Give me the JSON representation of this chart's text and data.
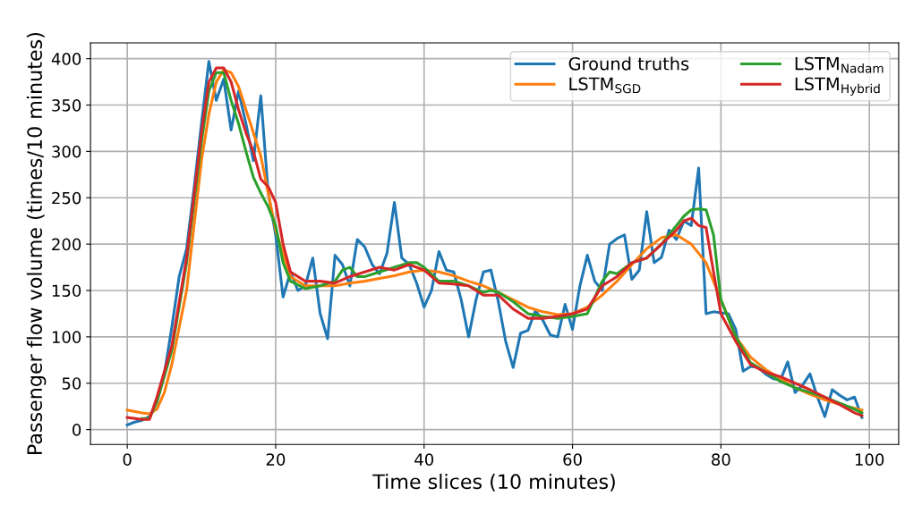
{
  "chart_data": {
    "type": "line",
    "xlabel": "Time slices (10 minutes)",
    "ylabel": "Passenger flow volume (times/10 minutes)",
    "xlim": [
      -4.95,
      103.95
    ],
    "ylim": [
      -16,
      417
    ],
    "xticks": [
      0,
      20,
      40,
      60,
      80,
      100
    ],
    "yticks": [
      0,
      50,
      100,
      150,
      200,
      250,
      300,
      350,
      400
    ],
    "grid": true,
    "legend": "top right",
    "line_style": "solid",
    "marker": "none",
    "series": [
      {
        "name": "Ground truths",
        "color": "#1f77b4",
        "x": [
          0,
          1,
          2,
          3,
          4,
          5,
          6,
          7,
          8,
          9,
          10,
          11,
          12,
          13,
          14,
          15,
          16,
          17,
          18,
          19,
          20,
          21,
          22,
          23,
          24,
          25,
          26,
          27,
          28,
          29,
          30,
          31,
          32,
          33,
          34,
          35,
          36,
          37,
          38,
          39,
          40,
          41,
          42,
          43,
          44,
          45,
          46,
          47,
          48,
          49,
          50,
          51,
          52,
          53,
          54,
          55,
          56,
          57,
          58,
          59,
          60,
          61,
          62,
          63,
          64,
          65,
          66,
          67,
          68,
          69,
          70,
          71,
          72,
          73,
          74,
          75,
          76,
          77,
          78,
          79,
          80,
          81,
          82,
          83,
          84,
          85,
          86,
          87,
          88,
          89,
          90,
          91,
          92,
          93,
          94,
          95,
          96,
          97,
          98,
          99
        ],
        "values": [
          5,
          8,
          10,
          14,
          30,
          60,
          110,
          165,
          195,
          260,
          330,
          397,
          355,
          378,
          323,
          365,
          330,
          290,
          360,
          255,
          210,
          143,
          170,
          150,
          155,
          185,
          125,
          98,
          188,
          178,
          155,
          205,
          197,
          178,
          168,
          190,
          245,
          185,
          178,
          158,
          132,
          150,
          192,
          172,
          170,
          140,
          100,
          140,
          170,
          172,
          138,
          95,
          67,
          104,
          107,
          128,
          118,
          102,
          100,
          135,
          108,
          155,
          188,
          160,
          150,
          200,
          206,
          210,
          162,
          172,
          235,
          180,
          186,
          215,
          205,
          225,
          220,
          282,
          125,
          127,
          126,
          125,
          108,
          63,
          68,
          67,
          60,
          55,
          53,
          73,
          40,
          48,
          60,
          35,
          14,
          43,
          37,
          32,
          35,
          13
        ]
      },
      {
        "name": "LSTM$_{SGD}$",
        "color": "#ff7f0e",
        "x": [
          0,
          2,
          3,
          4,
          5,
          6,
          8,
          10,
          11,
          12,
          13,
          14,
          15,
          16,
          18,
          20,
          22,
          24,
          26,
          28,
          30,
          32,
          34,
          36,
          38,
          40,
          42,
          44,
          46,
          48,
          50,
          52,
          54,
          56,
          58,
          60,
          62,
          64,
          66,
          68,
          70,
          72,
          74,
          76,
          78,
          80,
          82,
          84,
          86,
          88,
          90,
          92,
          94,
          96,
          98,
          99
        ],
        "values": [
          21,
          18,
          17,
          22,
          40,
          70,
          150,
          290,
          340,
          375,
          388,
          385,
          370,
          345,
          295,
          215,
          165,
          155,
          155,
          155,
          158,
          160,
          163,
          166,
          170,
          172,
          170,
          166,
          160,
          155,
          148,
          140,
          132,
          127,
          124,
          125,
          132,
          145,
          160,
          178,
          195,
          207,
          210,
          200,
          180,
          140,
          100,
          78,
          65,
          55,
          45,
          38,
          32,
          27,
          23,
          21
        ]
      },
      {
        "name": "LSTM$_{Nadam}$",
        "color": "#2ca02c",
        "x": [
          2,
          3,
          4,
          6,
          8,
          10,
          11,
          12,
          13,
          14,
          15,
          16,
          17,
          18,
          19,
          20,
          21,
          22,
          24,
          26,
          28,
          29,
          30,
          31,
          32,
          34,
          36,
          38,
          39,
          40,
          42,
          44,
          46,
          48,
          49,
          50,
          52,
          54,
          56,
          58,
          60,
          62,
          64,
          65,
          66,
          68,
          70,
          72,
          74,
          75,
          76,
          77,
          78,
          79,
          80,
          82,
          84,
          86,
          88,
          90,
          92,
          94,
          98,
          99
        ],
        "values": [
          12,
          12,
          30,
          85,
          180,
          310,
          365,
          385,
          385,
          355,
          330,
          300,
          272,
          255,
          240,
          220,
          180,
          160,
          152,
          155,
          160,
          172,
          175,
          165,
          165,
          170,
          175,
          180,
          180,
          175,
          160,
          160,
          155,
          148,
          150,
          148,
          138,
          125,
          122,
          120,
          122,
          125,
          160,
          170,
          168,
          180,
          185,
          200,
          220,
          230,
          237,
          238,
          237,
          210,
          140,
          100,
          72,
          62,
          52,
          45,
          40,
          35,
          22,
          18
        ]
      },
      {
        "name": "LSTM$_{Hybrid}$",
        "color": "#d62728",
        "x": [
          0,
          2,
          3,
          4,
          6,
          8,
          10,
          11,
          12,
          13,
          14,
          15,
          16,
          17,
          18,
          19,
          20,
          21,
          22,
          24,
          26,
          28,
          30,
          32,
          34,
          36,
          38,
          40,
          42,
          44,
          46,
          48,
          50,
          52,
          54,
          56,
          58,
          60,
          62,
          64,
          66,
          68,
          70,
          72,
          74,
          75,
          76,
          77,
          78,
          79,
          80,
          82,
          84,
          86,
          88,
          90,
          92,
          94,
          96,
          98,
          99
        ],
        "values": [
          13,
          11,
          11,
          35,
          90,
          185,
          320,
          375,
          390,
          390,
          375,
          345,
          320,
          300,
          270,
          262,
          245,
          200,
          170,
          160,
          160,
          158,
          165,
          170,
          175,
          172,
          178,
          172,
          158,
          157,
          155,
          145,
          145,
          130,
          120,
          120,
          122,
          125,
          130,
          155,
          165,
          180,
          185,
          200,
          215,
          225,
          228,
          220,
          218,
          170,
          125,
          95,
          70,
          62,
          57,
          50,
          43,
          35,
          27,
          18,
          15
        ]
      }
    ]
  }
}
